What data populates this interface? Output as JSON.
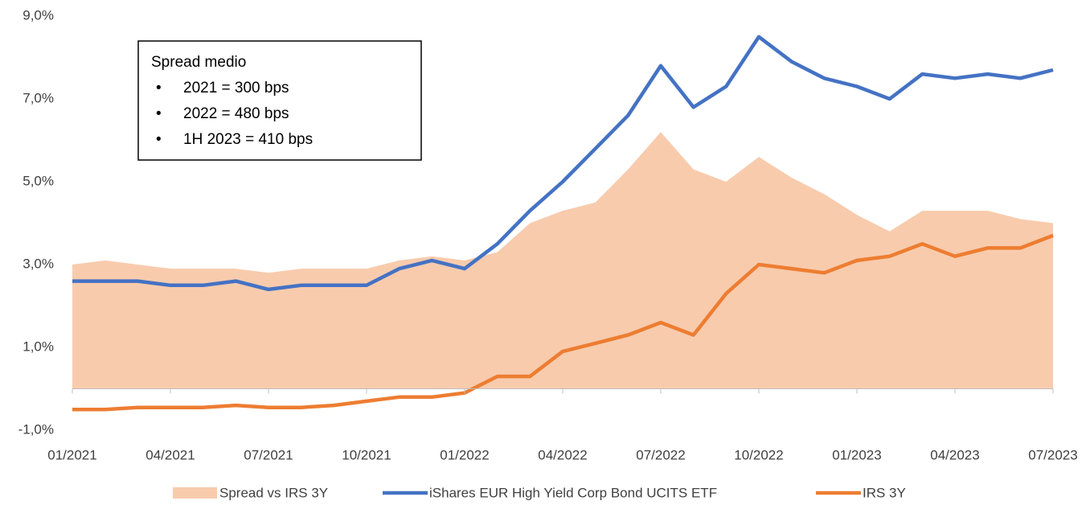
{
  "chart_data": {
    "type": "line",
    "x": [
      "01/2021",
      "02/2021",
      "03/2021",
      "04/2021",
      "05/2021",
      "06/2021",
      "07/2021",
      "08/2021",
      "09/2021",
      "10/2021",
      "11/2021",
      "12/2021",
      "01/2022",
      "02/2022",
      "03/2022",
      "04/2022",
      "05/2022",
      "06/2022",
      "07/2022",
      "08/2022",
      "09/2022",
      "10/2022",
      "11/2022",
      "12/2022",
      "01/2023",
      "02/2023",
      "03/2023",
      "04/2023",
      "05/2023",
      "06/2023",
      "07/2023"
    ],
    "xticks": [
      "01/2021",
      "04/2021",
      "07/2021",
      "10/2021",
      "01/2022",
      "04/2022",
      "07/2022",
      "10/2022",
      "01/2023",
      "04/2023",
      "07/2023"
    ],
    "ylim": [
      -1,
      9
    ],
    "yticks": [
      {
        "value": -1,
        "label": "-1,0%"
      },
      {
        "value": 1,
        "label": "1,0%"
      },
      {
        "value": 3,
        "label": "3,0%"
      },
      {
        "value": 5,
        "label": "5,0%"
      },
      {
        "value": 7,
        "label": "7,0%"
      },
      {
        "value": 9,
        "label": "9,0%"
      }
    ],
    "legend": "bottom",
    "series": [
      {
        "name": "Spread vs IRS 3Y",
        "color": "#f8cbad",
        "style": "area",
        "values": [
          3.0,
          3.1,
          3.0,
          2.9,
          2.9,
          2.9,
          2.8,
          2.9,
          2.9,
          2.9,
          3.1,
          3.2,
          3.1,
          3.3,
          4.0,
          4.3,
          4.5,
          5.3,
          6.2,
          5.3,
          5.0,
          5.6,
          5.1,
          4.7,
          4.2,
          3.8,
          4.3,
          4.3,
          4.3,
          4.1,
          4.0
        ]
      },
      {
        "name": "iShares EUR High Yield Corp Bond UCITS ETF",
        "color": "#4472c4",
        "style": "line",
        "values": [
          2.6,
          2.6,
          2.6,
          2.5,
          2.5,
          2.6,
          2.4,
          2.5,
          2.5,
          2.5,
          2.9,
          3.1,
          2.9,
          3.5,
          4.3,
          5.0,
          5.8,
          6.6,
          7.8,
          6.8,
          7.3,
          8.5,
          7.9,
          7.5,
          7.3,
          7.0,
          7.6,
          7.5,
          7.6,
          7.5,
          7.7
        ]
      },
      {
        "name": "IRS 3Y",
        "color": "#ed7d31",
        "style": "line",
        "values": [
          -0.5,
          -0.5,
          -0.45,
          -0.45,
          -0.45,
          -0.4,
          -0.45,
          -0.45,
          -0.4,
          -0.3,
          -0.2,
          -0.2,
          -0.1,
          0.3,
          0.3,
          0.9,
          1.1,
          1.3,
          1.6,
          1.3,
          2.3,
          3.0,
          2.9,
          2.8,
          3.1,
          3.2,
          3.5,
          3.2,
          3.4,
          3.4,
          3.7
        ]
      }
    ],
    "annotation": {
      "title": "Spread medio",
      "items": [
        "2021 = 300 bps",
        "2022 = 480 bps",
        "1H 2023 = 410 bps"
      ]
    }
  }
}
